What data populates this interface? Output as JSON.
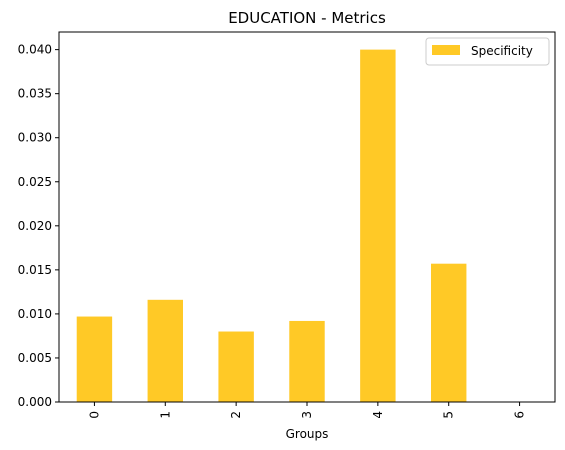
{
  "chart_data": {
    "type": "bar",
    "title": "EDUCATION - Metrics",
    "xlabel": "Groups",
    "ylabel": "",
    "categories": [
      "0",
      "1",
      "2",
      "3",
      "4",
      "5",
      "6"
    ],
    "series": [
      {
        "name": "Specificity",
        "values": [
          0.0097,
          0.0116,
          0.008,
          0.0092,
          0.04,
          0.0157,
          0.0
        ],
        "color": "#ffc926"
      }
    ],
    "ylim": [
      0,
      0.042
    ],
    "yticks": [
      "0.000",
      "0.005",
      "0.010",
      "0.015",
      "0.020",
      "0.025",
      "0.030",
      "0.035",
      "0.040"
    ],
    "ytick_values": [
      0,
      0.005,
      0.01,
      0.015,
      0.02,
      0.025,
      0.03,
      0.035,
      0.04
    ],
    "legend_position": "upper-right",
    "grid": false
  }
}
